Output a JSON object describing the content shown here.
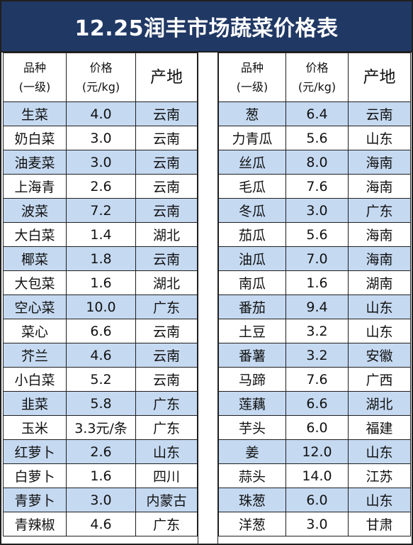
{
  "title": "12.25润丰市场蔬菜价格表",
  "headers": {
    "name_line1": "品种",
    "name_line2": "(一级)",
    "price_line1": "价格",
    "price_line2": "(元/kg)",
    "origin": "产地"
  },
  "colors": {
    "title_bg": "#203864",
    "band": "#c5d9f1",
    "border": "#1f1f1f"
  },
  "left": [
    {
      "name": "生菜",
      "price": "4.0",
      "origin": "云南"
    },
    {
      "name": "奶白菜",
      "price": "3.0",
      "origin": "云南"
    },
    {
      "name": "油麦菜",
      "price": "3.0",
      "origin": "云南"
    },
    {
      "name": "上海青",
      "price": "2.6",
      "origin": "云南"
    },
    {
      "name": "波菜",
      "price": "7.2",
      "origin": "云南"
    },
    {
      "name": "大白菜",
      "price": "1.4",
      "origin": "湖北"
    },
    {
      "name": "椰菜",
      "price": "1.8",
      "origin": "云南"
    },
    {
      "name": "大包菜",
      "price": "1.6",
      "origin": "湖北"
    },
    {
      "name": "空心菜",
      "price": "10.0",
      "origin": "广东"
    },
    {
      "name": "菜心",
      "price": "6.6",
      "origin": "云南"
    },
    {
      "name": "芥兰",
      "price": "4.6",
      "origin": "云南"
    },
    {
      "name": "小白菜",
      "price": "5.2",
      "origin": "云南"
    },
    {
      "name": "韭菜",
      "price": "5.8",
      "origin": "广东"
    },
    {
      "name": "玉米",
      "price": "3.3元/条",
      "origin": "广东"
    },
    {
      "name": "红萝卜",
      "price": "2.6",
      "origin": "山东"
    },
    {
      "name": "白萝卜",
      "price": "1.6",
      "origin": "四川"
    },
    {
      "name": "青萝卜",
      "price": "3.0",
      "origin": "内蒙古"
    },
    {
      "name": "青辣椒",
      "price": "4.6",
      "origin": "广东"
    }
  ],
  "right": [
    {
      "name": "葱",
      "price": "6.4",
      "origin": "云南"
    },
    {
      "name": "力青瓜",
      "price": "5.6",
      "origin": "山东"
    },
    {
      "name": "丝瓜",
      "price": "8.0",
      "origin": "海南"
    },
    {
      "name": "毛瓜",
      "price": "7.6",
      "origin": "海南"
    },
    {
      "name": "冬瓜",
      "price": "3.0",
      "origin": "广东"
    },
    {
      "name": "茄瓜",
      "price": "5.6",
      "origin": "海南"
    },
    {
      "name": "油瓜",
      "price": "7.0",
      "origin": "海南"
    },
    {
      "name": "南瓜",
      "price": "1.6",
      "origin": "湖南"
    },
    {
      "name": "番茄",
      "price": "9.4",
      "origin": "山东"
    },
    {
      "name": "土豆",
      "price": "3.2",
      "origin": "山东"
    },
    {
      "name": "番薯",
      "price": "3.2",
      "origin": "安徽"
    },
    {
      "name": "马蹄",
      "price": "7.6",
      "origin": "广西"
    },
    {
      "name": "莲藕",
      "price": "6.6",
      "origin": "湖北"
    },
    {
      "name": "芋头",
      "price": "6.0",
      "origin": "福建"
    },
    {
      "name": "姜",
      "price": "12.0",
      "origin": "山东"
    },
    {
      "name": "蒜头",
      "price": "14.0",
      "origin": "江苏"
    },
    {
      "name": "珠葱",
      "price": "6.0",
      "origin": "山东"
    },
    {
      "name": "洋葱",
      "price": "3.0",
      "origin": "甘肃"
    }
  ]
}
